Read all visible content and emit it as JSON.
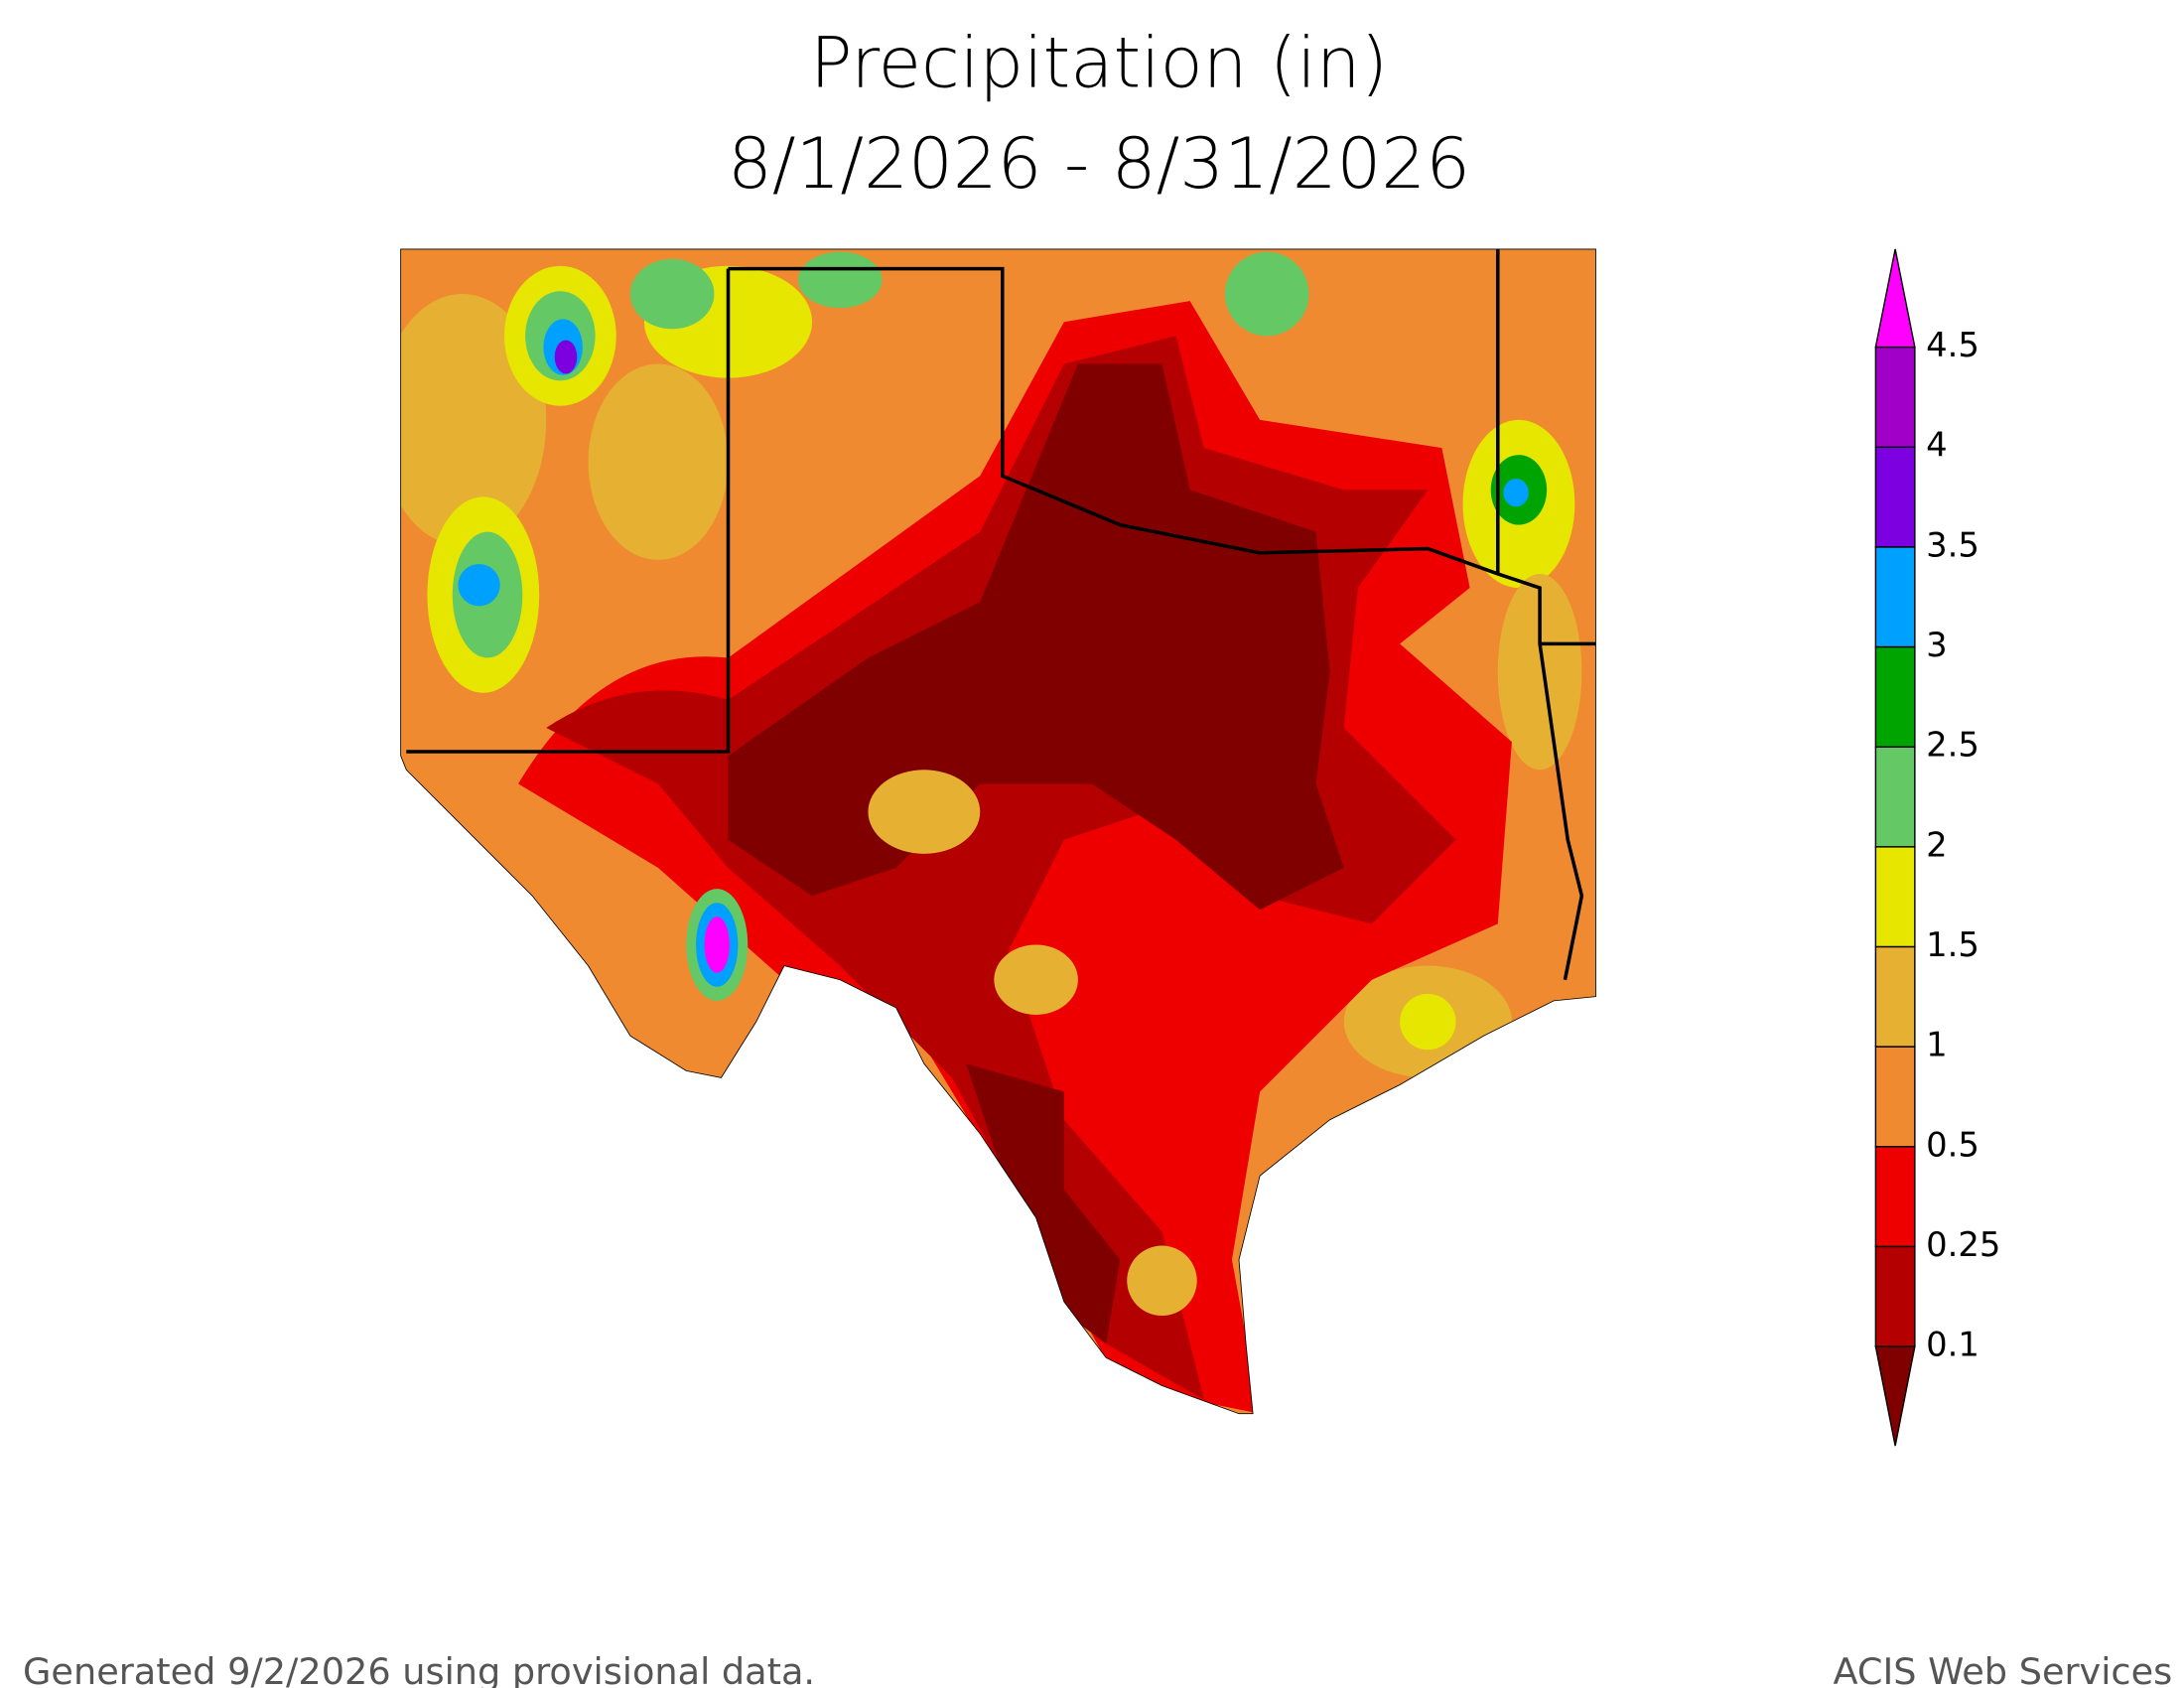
{
  "title": "Precipitation (in)",
  "subtitle": "8/1/2026 - 8/31/2026",
  "legend": {
    "labels": [
      "0.1",
      "0.25",
      "0.5",
      "1",
      "1.5",
      "2",
      "2.5",
      "3",
      "3.5",
      "4",
      "4.5"
    ],
    "colors": [
      "#800000",
      "#b40000",
      "#ee0000",
      "#f08a30",
      "#e6b032",
      "#e6e600",
      "#64c864",
      "#00a400",
      "#00a0ff",
      "#7d00e0",
      "#a000c8",
      "#ff00ff"
    ]
  },
  "footer": {
    "left": "Generated 9/2/2026  using provisional data.",
    "right": "ACIS Web Services"
  }
}
